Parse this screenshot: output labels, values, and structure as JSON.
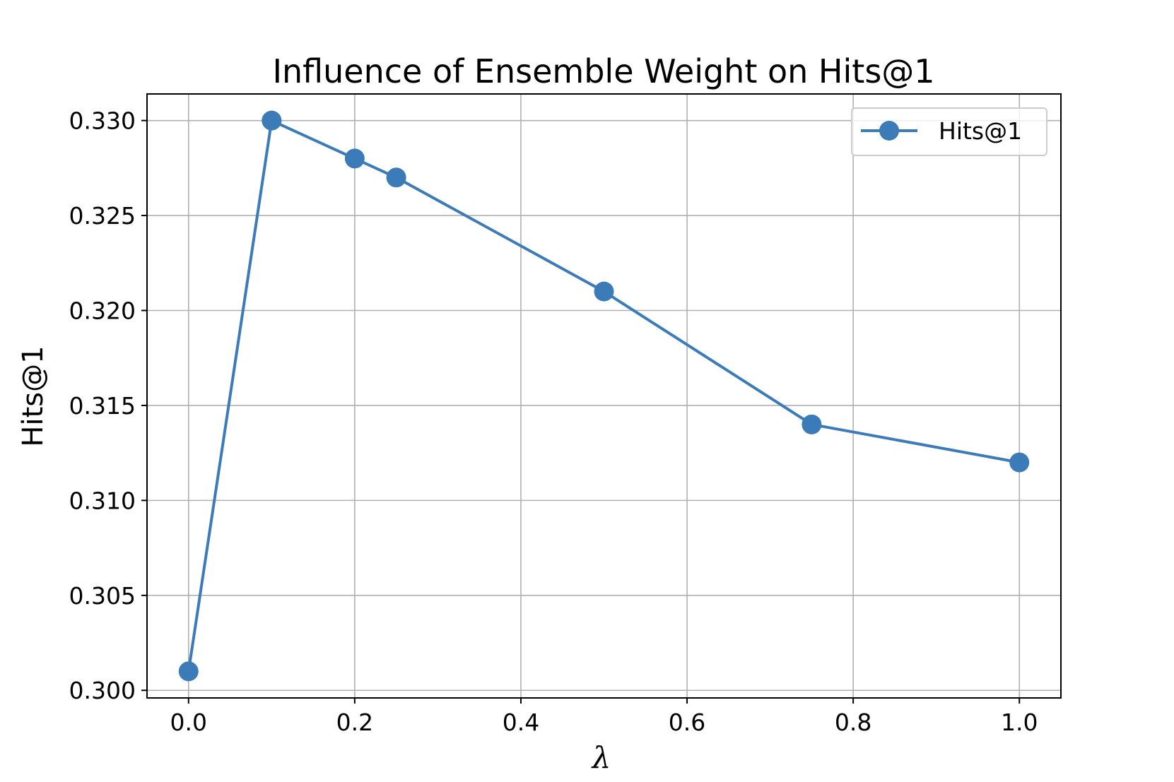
{
  "chart_data": {
    "type": "line",
    "title": "Influence of Ensemble Weight on Hits@1",
    "xlabel": "λ",
    "ylabel": "Hits@1",
    "xlim": [
      -0.05,
      1.05
    ],
    "ylim": [
      0.2996,
      0.3314
    ],
    "xticks": [
      "0.0",
      "0.2",
      "0.4",
      "0.6",
      "0.8",
      "1.0"
    ],
    "yticks": [
      "0.300",
      "0.305",
      "0.310",
      "0.315",
      "0.320",
      "0.325",
      "0.330"
    ],
    "grid": true,
    "legend_position": "top-right",
    "series": [
      {
        "name": "Hits@1",
        "color": "#3a7bb8",
        "marker": "circle",
        "x": [
          0.0,
          0.1,
          0.2,
          0.25,
          0.5,
          0.75,
          1.0
        ],
        "y": [
          0.301,
          0.33,
          0.328,
          0.327,
          0.321,
          0.314,
          0.312
        ]
      }
    ]
  }
}
